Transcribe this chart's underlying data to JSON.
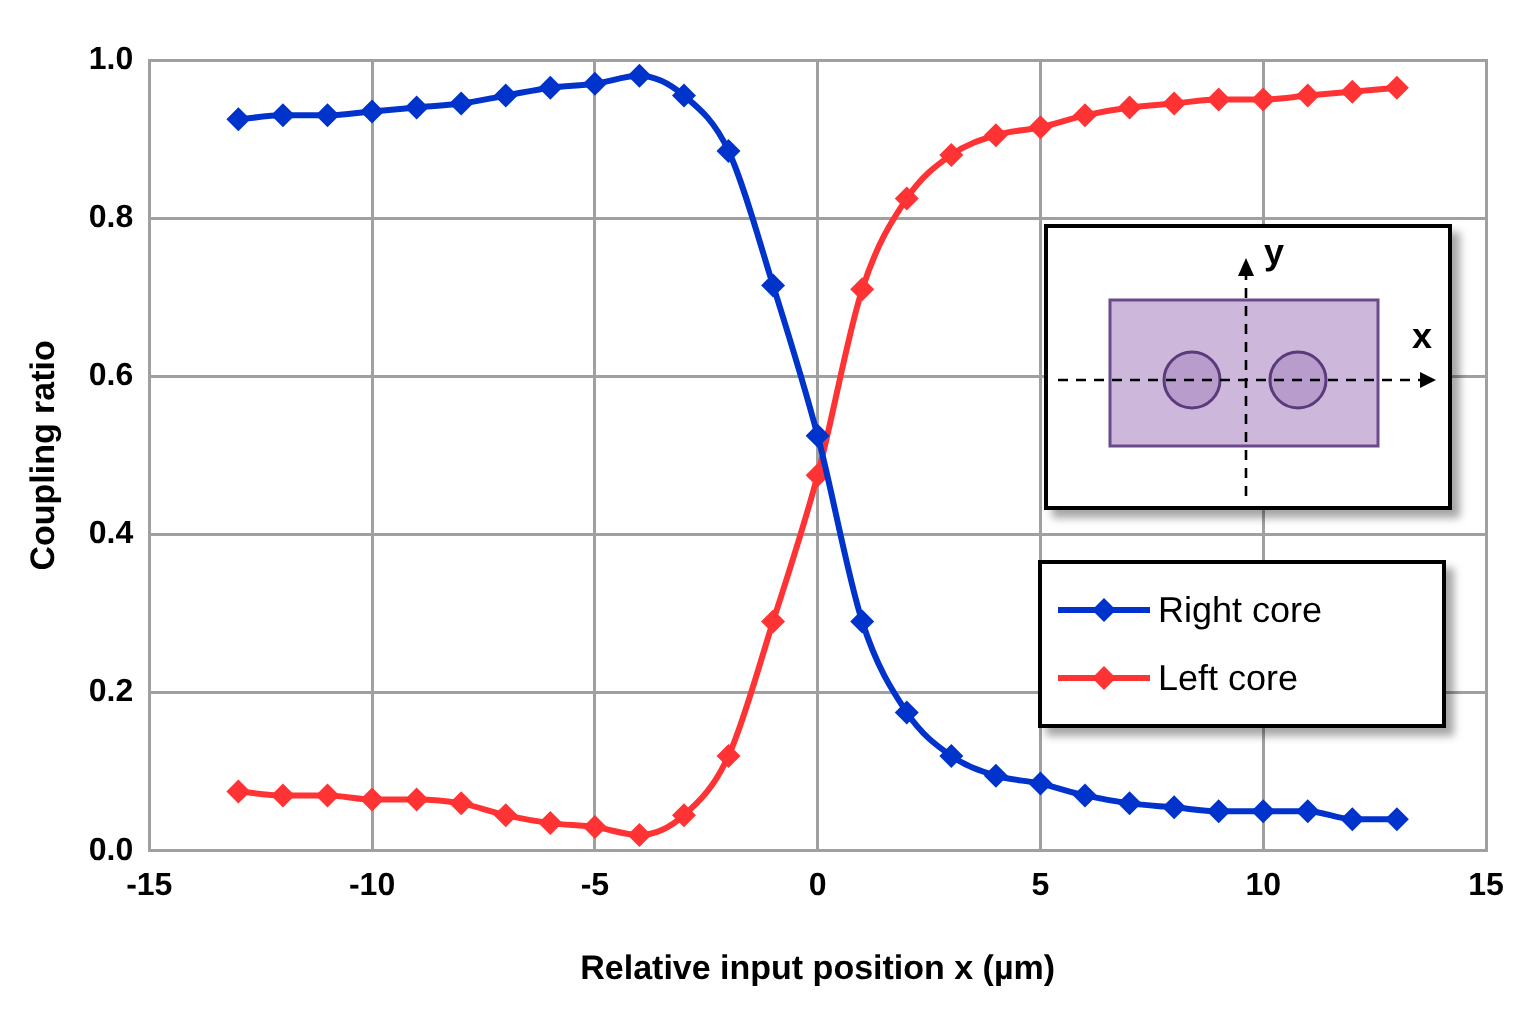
{
  "chart_data": {
    "type": "line",
    "xlabel": "Relative input position x (µm)",
    "ylabel": "Coupling ratio",
    "x": [
      -13,
      -12,
      -11,
      -10,
      -9,
      -8,
      -7,
      -6,
      -5,
      -4,
      -3,
      -2,
      -1,
      0,
      1,
      2,
      3,
      4,
      5,
      6,
      7,
      8,
      9,
      10,
      11,
      12,
      13
    ],
    "series": [
      {
        "name": "Right core",
        "color": "#0033cc",
        "values": [
          0.925,
          0.93,
          0.93,
          0.935,
          0.94,
          0.945,
          0.955,
          0.965,
          0.97,
          0.98,
          0.955,
          0.885,
          0.715,
          0.525,
          0.29,
          0.175,
          0.12,
          0.095,
          0.085,
          0.07,
          0.06,
          0.055,
          0.05,
          0.05,
          0.05,
          0.04,
          0.04
        ]
      },
      {
        "name": "Left core",
        "color": "#ff3333",
        "values": [
          0.075,
          0.07,
          0.07,
          0.065,
          0.065,
          0.06,
          0.045,
          0.035,
          0.03,
          0.02,
          0.045,
          0.12,
          0.29,
          0.475,
          0.71,
          0.825,
          0.88,
          0.905,
          0.915,
          0.93,
          0.94,
          0.945,
          0.95,
          0.95,
          0.955,
          0.96,
          0.965
        ]
      }
    ],
    "xlim": [
      -15,
      15
    ],
    "xticks": [
      -15,
      -10,
      -5,
      0,
      5,
      10,
      15
    ],
    "ylim": [
      0,
      1
    ],
    "yticks": [
      {
        "value": 0,
        "label": "0.0"
      },
      {
        "value": 0.2,
        "label": "0.2"
      },
      {
        "value": 0.4,
        "label": "0.4"
      },
      {
        "value": 0.6,
        "label": "0.6"
      },
      {
        "value": 0.8,
        "label": "0.8"
      },
      {
        "value": 1,
        "label": "1.0"
      }
    ],
    "annotations": [
      "x",
      "y"
    ],
    "grid": true,
    "legend": "bottom right",
    "marker": "diamond",
    "line_style": "solid"
  }
}
